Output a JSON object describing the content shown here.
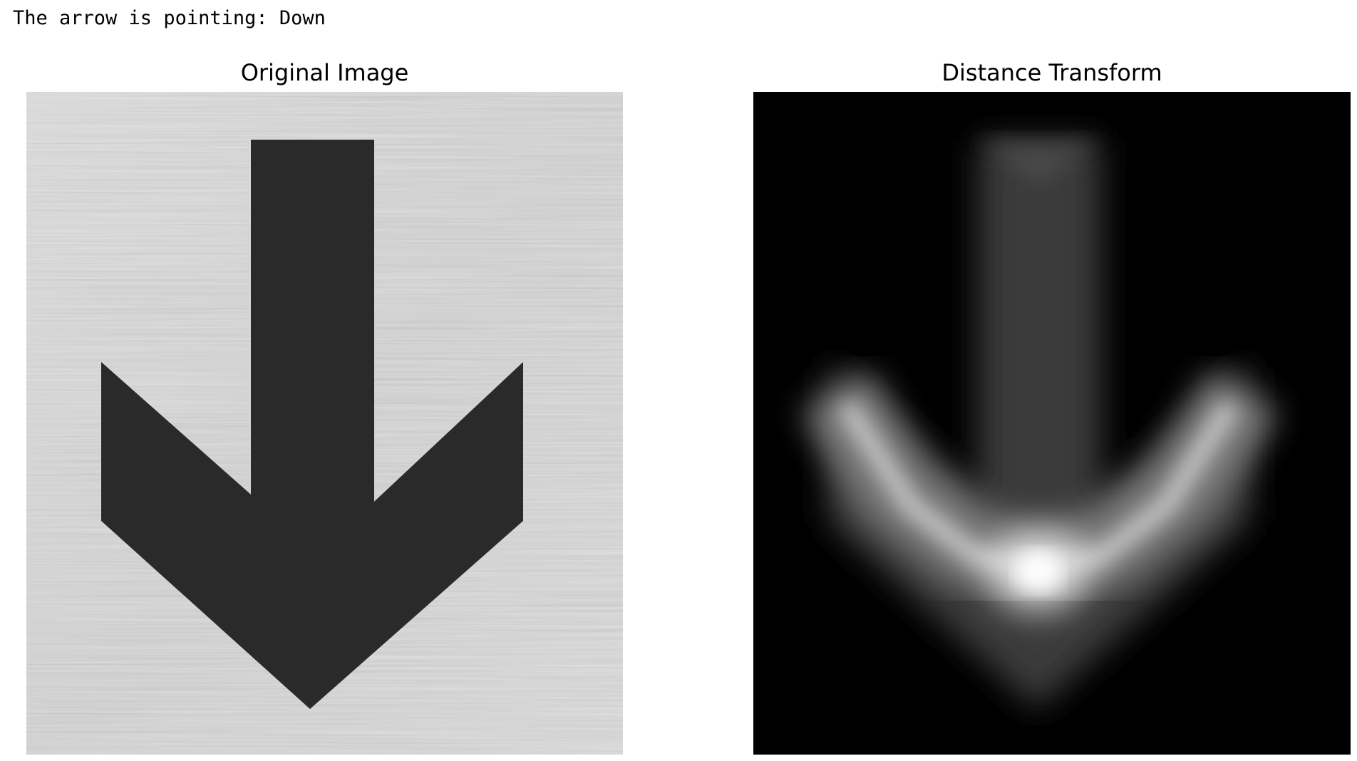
{
  "output": {
    "text": "The arrow is pointing: Down"
  },
  "panels": [
    {
      "title": "Original Image",
      "content": "metal-plate-with-down-arrow"
    },
    {
      "title": "Distance Transform",
      "content": "grayscale-distance-transform-of-arrow"
    }
  ],
  "colors": {
    "background": "#ffffff",
    "metal_light": "#c4c4c4",
    "metal_dark": "#a8a8a8",
    "arrow_fill": "#2a2a2a",
    "transform_background": "#000000",
    "transform_peak": "#ffffff"
  }
}
